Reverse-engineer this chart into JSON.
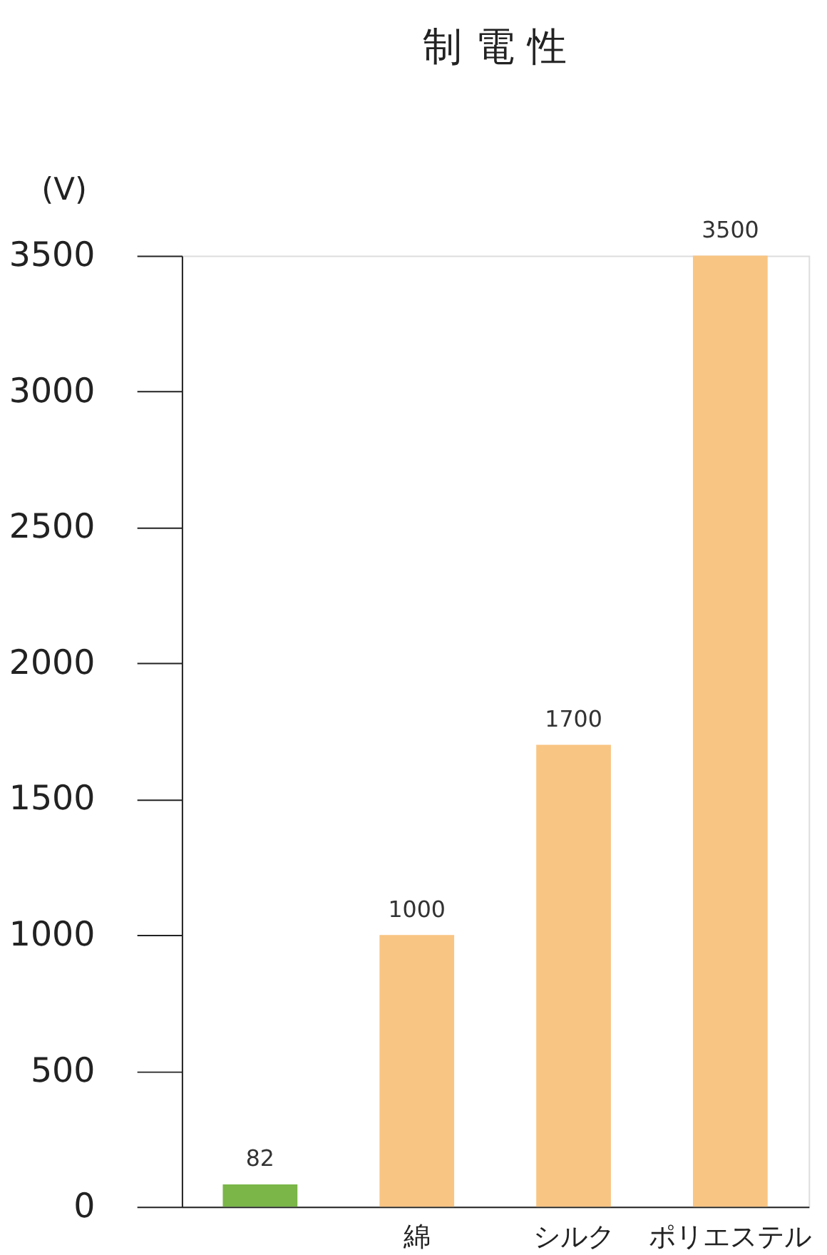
{
  "chart_data": {
    "type": "bar",
    "title": "制 電 性",
    "ylabel": "(V)",
    "categories": [
      null,
      "綿",
      "シルク",
      "ポリエステル"
    ],
    "values": [
      82,
      1000,
      1700,
      3500
    ],
    "colors": [
      "#7ab648",
      "#f9c583",
      "#f9c583",
      "#f9c583"
    ],
    "ylim": [
      0,
      3500
    ],
    "yticks": [
      0,
      500,
      1000,
      1500,
      2000,
      2500,
      3000,
      3500
    ],
    "data_labels": true,
    "grid": false
  }
}
